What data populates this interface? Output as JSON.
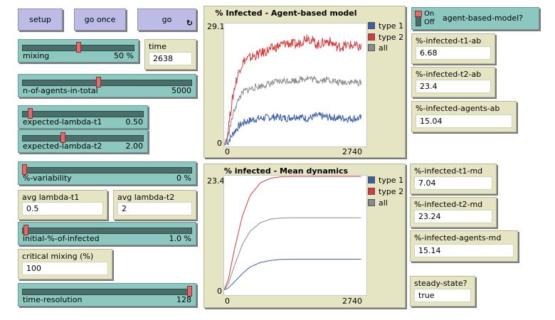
{
  "buttons": {
    "setup": "setup",
    "go_once": "go once",
    "go": "go",
    "go_forever_icon": "forever-icon"
  },
  "sliders": {
    "mixing": {
      "label": "mixing",
      "value": "50 %",
      "fraction": 0.5
    },
    "n_agents": {
      "label": "n-of-agents-in-total",
      "value": "5000",
      "fraction": 0.45
    },
    "lambda_t1": {
      "label": "expected-lambda-t1",
      "value": "0.50",
      "fraction": 0.05
    },
    "lambda_t2": {
      "label": "expected-lambda-t2",
      "value": "2.00",
      "fraction": 0.33
    },
    "variability": {
      "label": "%-variability",
      "value": "0 %",
      "fraction": 0.0
    },
    "initial_infected": {
      "label": "initial-%-of-infected",
      "value": "1.0 %",
      "fraction": 0.01
    },
    "time_resolution": {
      "label": "time-resolution",
      "value": "128",
      "fraction": 1.0
    }
  },
  "monitors": {
    "time": {
      "label": "time",
      "value": "2638"
    },
    "avg_lambda_t1": {
      "label": "avg lambda-t1",
      "value": "0.5"
    },
    "avg_lambda_t2": {
      "label": "avg lambda-t2",
      "value": "2"
    },
    "critical_mixing": {
      "label": "critical mixing (%)",
      "value": "100"
    },
    "infected_t1_ab": {
      "label": "%-infected-t1-ab",
      "value": "6.68"
    },
    "infected_t2_ab": {
      "label": "%-infected-t2-ab",
      "value": "23.4"
    },
    "infected_agents_ab": {
      "label": "%-infected-agents-ab",
      "value": "15.04"
    },
    "infected_t1_md": {
      "label": "%-infected-t1-md",
      "value": "7.04"
    },
    "infected_t2_md": {
      "label": "%-infected-t2-md",
      "value": "23.24"
    },
    "infected_agents_md": {
      "label": "%-infected-agents-md",
      "value": "15.14"
    },
    "steady_state": {
      "label": "steady-state?",
      "value": "true"
    }
  },
  "switch": {
    "label": "agent-based-model?",
    "on": "On",
    "off": "Off",
    "state": "on"
  },
  "legend": [
    {
      "name": "type 1",
      "color": "#3a5ea8"
    },
    {
      "name": "type 2",
      "color": "#d63a3a"
    },
    {
      "name": "all",
      "color": "#8a8a8a"
    }
  ],
  "chart_data": [
    {
      "type": "line",
      "title": "% Infected - Agent-based model",
      "xlim": [
        0,
        2740
      ],
      "ylim": [
        0,
        29.1
      ],
      "x_ticks": [
        "0",
        "2740"
      ],
      "y_ticks": [
        "0",
        "29.1"
      ],
      "series": [
        {
          "name": "type 1",
          "color": "#3a5ea8",
          "noise": 0.9,
          "x": [
            0,
            60,
            120,
            200,
            300,
            400,
            600,
            800,
            1000,
            1200,
            1400,
            1600,
            1800,
            2000,
            2200,
            2400,
            2638
          ],
          "values": [
            0.3,
            0.8,
            2.0,
            3.6,
            5.0,
            5.8,
            6.5,
            6.8,
            7.0,
            6.7,
            7.2,
            6.6,
            7.3,
            6.9,
            6.8,
            6.6,
            6.68
          ]
        },
        {
          "name": "type 2",
          "color": "#d63a3a",
          "noise": 1.2,
          "x": [
            0,
            60,
            120,
            200,
            300,
            400,
            600,
            800,
            1000,
            1200,
            1400,
            1600,
            1800,
            2000,
            2200,
            2400,
            2638
          ],
          "values": [
            0.3,
            2.5,
            8.0,
            14.0,
            18.5,
            20.5,
            21.5,
            22.5,
            23.5,
            24.5,
            24.0,
            26.0,
            24.0,
            25.0,
            23.5,
            24.0,
            23.4
          ]
        },
        {
          "name": "all",
          "color": "#8a8a8a",
          "noise": 0.8,
          "x": [
            0,
            60,
            120,
            200,
            300,
            400,
            600,
            800,
            1000,
            1200,
            1400,
            1600,
            1800,
            2000,
            2200,
            2400,
            2638
          ],
          "values": [
            0.3,
            1.6,
            5.0,
            8.8,
            11.8,
            13.2,
            14.0,
            14.6,
            15.2,
            15.6,
            15.6,
            16.3,
            15.6,
            15.9,
            15.1,
            15.3,
            15.04
          ]
        }
      ]
    },
    {
      "type": "line",
      "title": "% infected - Mean dynamics",
      "xlim": [
        0,
        2740
      ],
      "ylim": [
        0,
        23.4
      ],
      "x_ticks": [
        "0",
        "2740"
      ],
      "y_ticks": [
        "0",
        "23.4"
      ],
      "series": [
        {
          "name": "type 1",
          "color": "#3a5ea8",
          "noise": 0,
          "x": [
            0,
            80,
            200,
            350,
            500,
            700,
            900,
            1100,
            1300,
            1600,
            2000,
            2400,
            2638
          ],
          "values": [
            1.0,
            1.4,
            2.6,
            4.2,
            5.5,
            6.4,
            6.8,
            7.0,
            7.03,
            7.04,
            7.04,
            7.04,
            7.04
          ]
        },
        {
          "name": "type 2",
          "color": "#d63a3a",
          "noise": 0,
          "x": [
            0,
            80,
            200,
            350,
            500,
            700,
            900,
            1100,
            1300,
            1600,
            2000,
            2400,
            2638
          ],
          "values": [
            1.0,
            3.0,
            9.0,
            15.5,
            19.5,
            22.0,
            22.9,
            23.2,
            23.24,
            23.24,
            23.24,
            23.24,
            23.24
          ]
        },
        {
          "name": "all",
          "color": "#8a8a8a",
          "noise": 0,
          "x": [
            0,
            80,
            200,
            350,
            500,
            700,
            900,
            1100,
            1300,
            1600,
            2000,
            2400,
            2638
          ],
          "values": [
            1.0,
            2.2,
            5.8,
            9.9,
            12.5,
            14.2,
            14.9,
            15.1,
            15.14,
            15.14,
            15.14,
            15.14,
            15.14
          ]
        }
      ]
    }
  ]
}
